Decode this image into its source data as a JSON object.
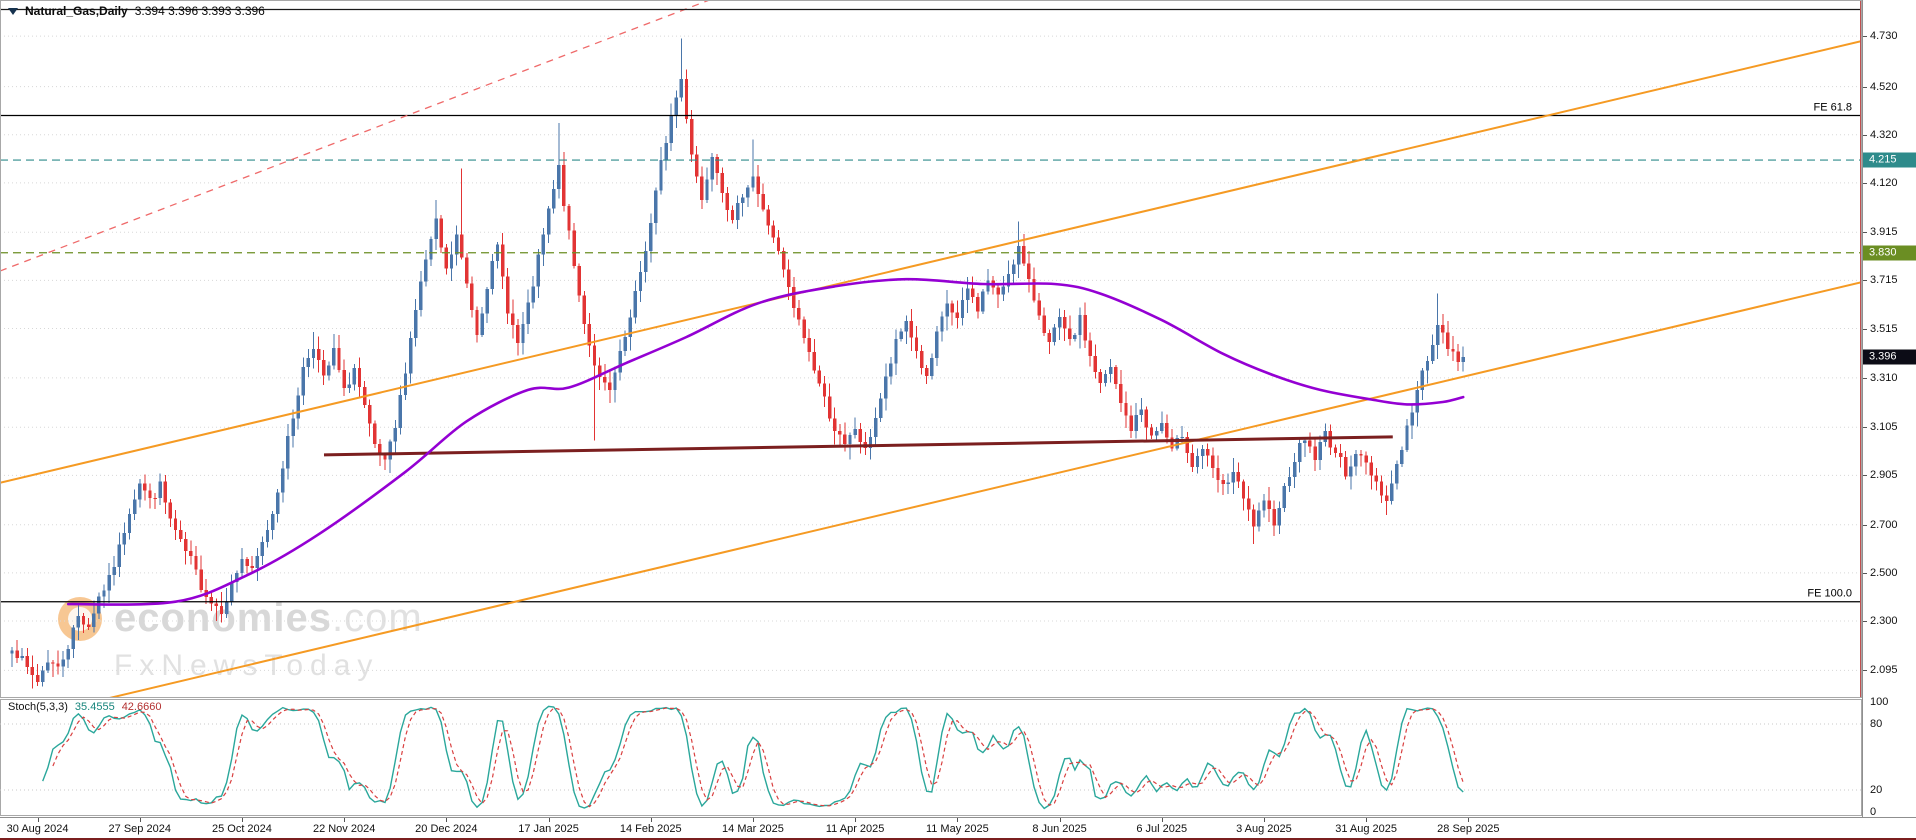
{
  "header": {
    "symbol": "Natural_Gas,Daily",
    "ohlc": "3.394 3.396 3.393 3.396"
  },
  "watermark": {
    "brand_bold": "economies",
    "brand_rest": ".com",
    "tagline": "FxNewsToday"
  },
  "colors": {
    "up_candle": "#4a76aa",
    "down_candle": "#e23434",
    "ma_line": "#9400d3",
    "channel_line": "#f59a23",
    "resistance_dashed": "#ef6a6a",
    "support_line": "#7b1f1f",
    "stoch_k": "#2aa79b",
    "stoch_d": "#d94040",
    "level_4215_badge": "#2e8b8b",
    "level_3830_badge": "#6b8e23",
    "current_price_badge": "#0c0c16",
    "fib_line": "#000000",
    "grid": "#d8d8d8"
  },
  "chart_data": {
    "type": "candlestick",
    "symbol": "Natural_Gas",
    "timeframe": "Daily",
    "seed": 7,
    "num_candles": 285,
    "current_price": 3.396,
    "price_scale": {
      "top_price": 4.88,
      "bottom_price": 1.98
    },
    "price_axis_ticks": [
      4.73,
      4.52,
      4.32,
      4.12,
      3.915,
      3.715,
      3.515,
      3.31,
      3.105,
      2.905,
      2.7,
      2.5,
      2.3,
      2.095
    ],
    "x_labels": [
      "30 Aug 2024",
      "27 Sep 2024",
      "25 Oct 2024",
      "22 Nov 2024",
      "20 Dec 2024",
      "17 Jan 2025",
      "14 Feb 2025",
      "14 Mar 2025",
      "11 Apr 2025",
      "11 May 2025",
      "8 Jun 2025",
      "6 Jul 2025",
      "3 Aug 2025",
      "31 Aug 2025",
      "28 Sep 2025"
    ],
    "x_label_first_index": 5,
    "x_label_step": 20,
    "close_path": [
      [
        0,
        2.2
      ],
      [
        3,
        2.1
      ],
      [
        5,
        2.05
      ],
      [
        7,
        2.14
      ],
      [
        9,
        2.1
      ],
      [
        11,
        2.2
      ],
      [
        13,
        2.32
      ],
      [
        15,
        2.28
      ],
      [
        17,
        2.4
      ],
      [
        19,
        2.47
      ],
      [
        21,
        2.6
      ],
      [
        23,
        2.76
      ],
      [
        25,
        2.88
      ],
      [
        27,
        2.8
      ],
      [
        29,
        2.86
      ],
      [
        31,
        2.72
      ],
      [
        33,
        2.62
      ],
      [
        35,
        2.55
      ],
      [
        37,
        2.45
      ],
      [
        39,
        2.38
      ],
      [
        41,
        2.35
      ],
      [
        43,
        2.45
      ],
      [
        45,
        2.56
      ],
      [
        47,
        2.5
      ],
      [
        49,
        2.62
      ],
      [
        51,
        2.75
      ],
      [
        53,
        2.95
      ],
      [
        55,
        3.15
      ],
      [
        57,
        3.35
      ],
      [
        59,
        3.45
      ],
      [
        61,
        3.3
      ],
      [
        63,
        3.42
      ],
      [
        65,
        3.25
      ],
      [
        67,
        3.35
      ],
      [
        69,
        3.18
      ],
      [
        71,
        3.02
      ],
      [
        73,
        2.95
      ],
      [
        75,
        3.1
      ],
      [
        77,
        3.35
      ],
      [
        79,
        3.6
      ],
      [
        81,
        3.8
      ],
      [
        83,
        3.95
      ],
      [
        85,
        3.75
      ],
      [
        87,
        3.9
      ],
      [
        89,
        3.7
      ],
      [
        91,
        3.5
      ],
      [
        93,
        3.7
      ],
      [
        95,
        3.85
      ],
      [
        97,
        3.6
      ],
      [
        99,
        3.45
      ],
      [
        101,
        3.6
      ],
      [
        103,
        3.8
      ],
      [
        105,
        4.0
      ],
      [
        107,
        4.18
      ],
      [
        109,
        3.9
      ],
      [
        111,
        3.65
      ],
      [
        113,
        3.45
      ],
      [
        115,
        3.3
      ],
      [
        117,
        3.25
      ],
      [
        119,
        3.4
      ],
      [
        121,
        3.55
      ],
      [
        123,
        3.75
      ],
      [
        125,
        3.95
      ],
      [
        127,
        4.2
      ],
      [
        129,
        4.4
      ],
      [
        131,
        4.55
      ],
      [
        133,
        4.25
      ],
      [
        135,
        4.05
      ],
      [
        137,
        4.25
      ],
      [
        139,
        4.1
      ],
      [
        141,
        3.95
      ],
      [
        143,
        4.08
      ],
      [
        145,
        4.15
      ],
      [
        147,
        4.0
      ],
      [
        149,
        3.9
      ],
      [
        151,
        3.75
      ],
      [
        153,
        3.6
      ],
      [
        155,
        3.48
      ],
      [
        157,
        3.35
      ],
      [
        159,
        3.22
      ],
      [
        161,
        3.1
      ],
      [
        163,
        3.02
      ],
      [
        165,
        3.1
      ],
      [
        167,
        3.0
      ],
      [
        169,
        3.15
      ],
      [
        171,
        3.3
      ],
      [
        173,
        3.45
      ],
      [
        175,
        3.55
      ],
      [
        177,
        3.42
      ],
      [
        179,
        3.3
      ],
      [
        181,
        3.48
      ],
      [
        183,
        3.62
      ],
      [
        185,
        3.55
      ],
      [
        187,
        3.68
      ],
      [
        189,
        3.6
      ],
      [
        191,
        3.72
      ],
      [
        193,
        3.64
      ],
      [
        195,
        3.75
      ],
      [
        197,
        3.85
      ],
      [
        199,
        3.7
      ],
      [
        201,
        3.58
      ],
      [
        203,
        3.45
      ],
      [
        205,
        3.55
      ],
      [
        207,
        3.45
      ],
      [
        209,
        3.55
      ],
      [
        211,
        3.4
      ],
      [
        213,
        3.28
      ],
      [
        215,
        3.35
      ],
      [
        217,
        3.2
      ],
      [
        219,
        3.1
      ],
      [
        221,
        3.18
      ],
      [
        223,
        3.06
      ],
      [
        225,
        3.12
      ],
      [
        227,
        3.0
      ],
      [
        229,
        3.08
      ],
      [
        231,
        2.95
      ],
      [
        233,
        3.02
      ],
      [
        235,
        2.92
      ],
      [
        237,
        2.85
      ],
      [
        239,
        2.92
      ],
      [
        241,
        2.8
      ],
      [
        243,
        2.7
      ],
      [
        245,
        2.78
      ],
      [
        247,
        2.72
      ],
      [
        249,
        2.85
      ],
      [
        251,
        2.98
      ],
      [
        253,
        3.06
      ],
      [
        255,
        2.98
      ],
      [
        257,
        3.08
      ],
      [
        259,
        3.0
      ],
      [
        261,
        2.92
      ],
      [
        263,
        3.0
      ],
      [
        265,
        2.95
      ],
      [
        267,
        2.88
      ],
      [
        269,
        2.8
      ],
      [
        271,
        2.95
      ],
      [
        273,
        3.1
      ],
      [
        275,
        3.25
      ],
      [
        277,
        3.4
      ],
      [
        279,
        3.52
      ],
      [
        281,
        3.44
      ],
      [
        283,
        3.37
      ],
      [
        284,
        3.396
      ]
    ],
    "spikes": [
      {
        "i": 4,
        "low": 2.02
      },
      {
        "i": 40,
        "low": 2.3
      },
      {
        "i": 59,
        "high": 3.5
      },
      {
        "i": 83,
        "high": 4.05
      },
      {
        "i": 88,
        "high": 4.18
      },
      {
        "i": 107,
        "high": 4.37
      },
      {
        "i": 114,
        "low": 3.05
      },
      {
        "i": 131,
        "high": 4.72
      },
      {
        "i": 145,
        "high": 4.3
      },
      {
        "i": 164,
        "low": 2.97
      },
      {
        "i": 197,
        "high": 3.96
      },
      {
        "i": 243,
        "low": 2.62
      },
      {
        "i": 269,
        "low": 2.74
      },
      {
        "i": 279,
        "high": 3.66
      }
    ],
    "ma_path": [
      [
        11,
        2.37
      ],
      [
        32,
        2.38
      ],
      [
        46,
        2.49
      ],
      [
        60,
        2.66
      ],
      [
        77,
        2.92
      ],
      [
        89,
        3.13
      ],
      [
        101,
        3.26
      ],
      [
        109,
        3.27
      ],
      [
        120,
        3.37
      ],
      [
        132,
        3.48
      ],
      [
        146,
        3.62
      ],
      [
        161,
        3.69
      ],
      [
        175,
        3.72
      ],
      [
        190,
        3.7
      ],
      [
        204,
        3.7
      ],
      [
        213,
        3.66
      ],
      [
        225,
        3.55
      ],
      [
        237,
        3.41
      ],
      [
        247,
        3.32
      ],
      [
        256,
        3.26
      ],
      [
        266,
        3.22
      ],
      [
        273,
        3.2
      ],
      [
        280,
        3.21
      ],
      [
        284,
        3.23
      ]
    ],
    "level_lines": [
      {
        "label": "FE 61.8",
        "price": 4.4,
        "style": "solid",
        "color": "#000000",
        "badge": false
      },
      {
        "label": "FE 100.0",
        "price": 2.38,
        "style": "solid",
        "color": "#000000",
        "badge": false
      },
      {
        "label": "4.215",
        "price": 4.215,
        "style": "dashed",
        "color": "#2e8b8b",
        "badge": true
      },
      {
        "label": "3.830",
        "price": 3.83,
        "style": "dashed",
        "color": "#6b8e23",
        "badge": true
      }
    ],
    "trend_lines": [
      {
        "name": "channel-upper",
        "color": "#f59a23",
        "width": 2,
        "dash": "",
        "x1f": 0.0,
        "p1": 2.874,
        "x2f": 1.0,
        "p2": 4.71
      },
      {
        "name": "channel-lower",
        "color": "#f59a23",
        "width": 2,
        "dash": "",
        "x1f": 0.0,
        "p1": 1.872,
        "x2f": 1.0,
        "p2": 3.708
      },
      {
        "name": "resistance-dashed",
        "color": "#ef6a6a",
        "width": 1.3,
        "dash": "7 6",
        "x1f": 0.0,
        "p1": 3.754,
        "x2f": 0.381,
        "p2": 4.88
      },
      {
        "name": "support-trendline",
        "color": "#7b1f1f",
        "width": 3,
        "dash": "",
        "x1f": 0.174,
        "p1": 2.99,
        "x2f": 0.748,
        "p2": 3.065
      }
    ],
    "stochastic": {
      "name": "Stoch(5,3,3)",
      "k_value": "35.4555",
      "d_value": "42.6660",
      "k_period": 5,
      "d_period": 3,
      "slowing": 3,
      "levels": [
        80,
        20
      ],
      "axis_labels": [
        100,
        80,
        20,
        0
      ]
    }
  }
}
